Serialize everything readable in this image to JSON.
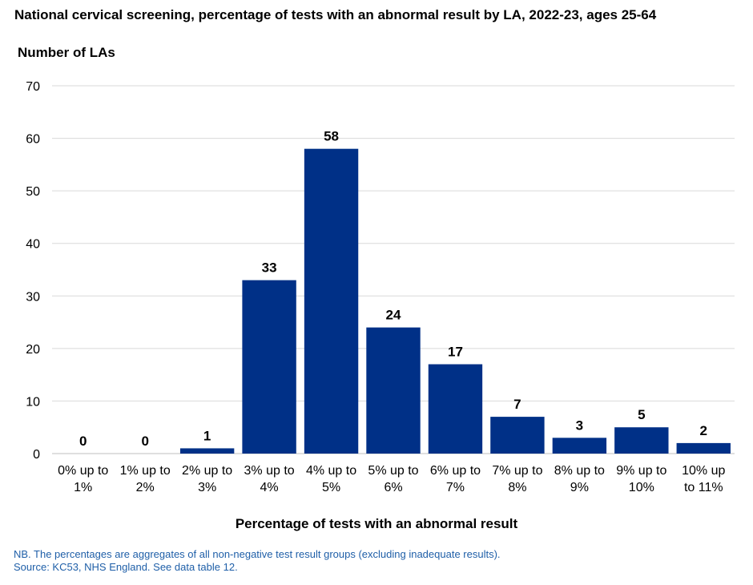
{
  "chart_data": {
    "type": "bar",
    "title": "National cervical screening, percentage of tests with an abnormal result by LA, 2022-23, ages 25-64",
    "ylabel": "Number of LAs",
    "xlabel": "Percentage of tests with an abnormal result",
    "categories": [
      [
        "0% up to",
        "1%"
      ],
      [
        "1% up to",
        "2%"
      ],
      [
        "2% up to",
        "3%"
      ],
      [
        "3% up to",
        "4%"
      ],
      [
        "4% up to",
        "5%"
      ],
      [
        "5% up to",
        "6%"
      ],
      [
        "6% up to",
        "7%"
      ],
      [
        "7% up to",
        "8%"
      ],
      [
        "8% up to",
        "9%"
      ],
      [
        "9% up to",
        "10%"
      ],
      [
        "10% up",
        "to 11%"
      ]
    ],
    "values": [
      0,
      0,
      1,
      33,
      58,
      24,
      17,
      7,
      3,
      5,
      2
    ],
    "ylim": [
      0,
      70
    ],
    "yticks": [
      0,
      10,
      20,
      30,
      40,
      50,
      60,
      70
    ],
    "grid": true,
    "bar_color": "#003087",
    "legend": "none"
  },
  "notes": [
    "NB. The percentages are aggregates of all non-negative test result groups (excluding inadequate results).",
    "Source: KC53, NHS England. See data table 12."
  ],
  "colors": {
    "note_text": "#1f5fa8",
    "gridline": "#d9d9d9"
  }
}
